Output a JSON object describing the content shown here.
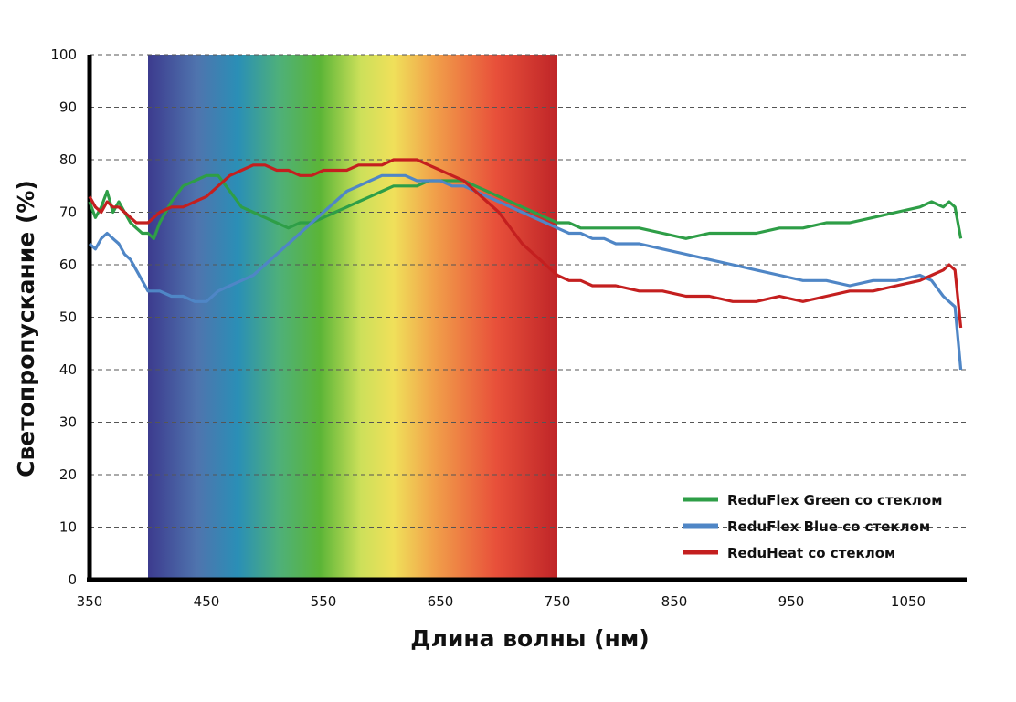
{
  "chart_data": {
    "type": "line",
    "xlabel": "Длина волны (нм)",
    "ylabel": "Светопропускание  (%)",
    "xlim": [
      350,
      1100
    ],
    "ylim": [
      0,
      100
    ],
    "x_ticks": [
      "350",
      "450",
      "550",
      "650",
      "750",
      "850",
      "950",
      "1050"
    ],
    "y_ticks": [
      "0",
      "10",
      "20",
      "30",
      "40",
      "50",
      "60",
      "70",
      "80",
      "90",
      "100"
    ],
    "grid": "horizontal dashed",
    "legend_position": "bottom-right",
    "visible_spectrum_band": [
      400,
      750
    ],
    "series": [
      {
        "name": "ReduFlex Green со стеклом",
        "color": "#2e9e47",
        "x": [
          350,
          355,
          360,
          365,
          370,
          375,
          380,
          385,
          390,
          395,
          400,
          405,
          410,
          420,
          430,
          440,
          450,
          460,
          470,
          480,
          490,
          500,
          510,
          520,
          530,
          540,
          550,
          560,
          570,
          580,
          590,
          600,
          610,
          620,
          630,
          640,
          650,
          660,
          670,
          680,
          690,
          700,
          710,
          720,
          730,
          740,
          750,
          760,
          770,
          780,
          790,
          800,
          820,
          840,
          860,
          880,
          900,
          920,
          940,
          960,
          980,
          1000,
          1020,
          1040,
          1060,
          1070,
          1080,
          1085,
          1090,
          1095
        ],
        "values": [
          72,
          69,
          71,
          74,
          70,
          72,
          70,
          68,
          67,
          66,
          66,
          65,
          68,
          72,
          75,
          76,
          77,
          77,
          74,
          71,
          70,
          69,
          68,
          67,
          68,
          68,
          69,
          70,
          71,
          72,
          73,
          74,
          75,
          75,
          75,
          76,
          76,
          76,
          76,
          75,
          74,
          73,
          72,
          71,
          70,
          69,
          68,
          68,
          67,
          67,
          67,
          67,
          67,
          66,
          65,
          66,
          66,
          66,
          67,
          67,
          68,
          68,
          69,
          70,
          71,
          72,
          71,
          72,
          71,
          65
        ]
      },
      {
        "name": "ReduFlex Blue со стеклом",
        "color": "#4f86c6",
        "x": [
          350,
          355,
          360,
          365,
          370,
          375,
          380,
          385,
          390,
          395,
          400,
          405,
          410,
          420,
          430,
          440,
          450,
          460,
          470,
          480,
          490,
          500,
          510,
          520,
          530,
          540,
          550,
          560,
          570,
          580,
          590,
          600,
          610,
          620,
          630,
          640,
          650,
          660,
          670,
          680,
          690,
          700,
          710,
          720,
          730,
          740,
          750,
          760,
          770,
          780,
          790,
          800,
          820,
          840,
          860,
          880,
          900,
          920,
          940,
          960,
          980,
          1000,
          1020,
          1040,
          1060,
          1070,
          1080,
          1085,
          1090,
          1095
        ],
        "values": [
          64,
          63,
          65,
          66,
          65,
          64,
          62,
          61,
          59,
          57,
          55,
          55,
          55,
          54,
          54,
          53,
          53,
          55,
          56,
          57,
          58,
          60,
          62,
          64,
          66,
          68,
          70,
          72,
          74,
          75,
          76,
          77,
          77,
          77,
          76,
          76,
          76,
          75,
          75,
          74,
          73,
          72,
          71,
          70,
          69,
          68,
          67,
          66,
          66,
          65,
          65,
          64,
          64,
          63,
          62,
          61,
          60,
          59,
          58,
          57,
          57,
          56,
          57,
          57,
          58,
          57,
          54,
          53,
          52,
          40
        ]
      },
      {
        "name": "ReduHeat со стеклом",
        "color": "#c41f1f",
        "x": [
          350,
          355,
          360,
          365,
          370,
          375,
          380,
          385,
          390,
          395,
          400,
          405,
          410,
          420,
          430,
          440,
          450,
          460,
          470,
          480,
          490,
          500,
          510,
          520,
          530,
          540,
          550,
          560,
          570,
          580,
          590,
          600,
          610,
          620,
          630,
          640,
          650,
          660,
          670,
          680,
          690,
          700,
          710,
          720,
          730,
          740,
          750,
          760,
          770,
          780,
          790,
          800,
          820,
          840,
          860,
          880,
          900,
          920,
          940,
          960,
          980,
          1000,
          1020,
          1040,
          1060,
          1070,
          1080,
          1085,
          1090,
          1095
        ],
        "values": [
          73,
          71,
          70,
          72,
          71,
          71,
          70,
          69,
          68,
          68,
          68,
          69,
          70,
          71,
          71,
          72,
          73,
          75,
          77,
          78,
          79,
          79,
          78,
          78,
          77,
          77,
          78,
          78,
          78,
          79,
          79,
          79,
          80,
          80,
          80,
          79,
          78,
          77,
          76,
          74,
          72,
          70,
          67,
          64,
          62,
          60,
          58,
          57,
          57,
          56,
          56,
          56,
          55,
          55,
          54,
          54,
          53,
          53,
          54,
          53,
          54,
          55,
          55,
          56,
          57,
          58,
          59,
          60,
          59,
          48
        ]
      }
    ]
  }
}
